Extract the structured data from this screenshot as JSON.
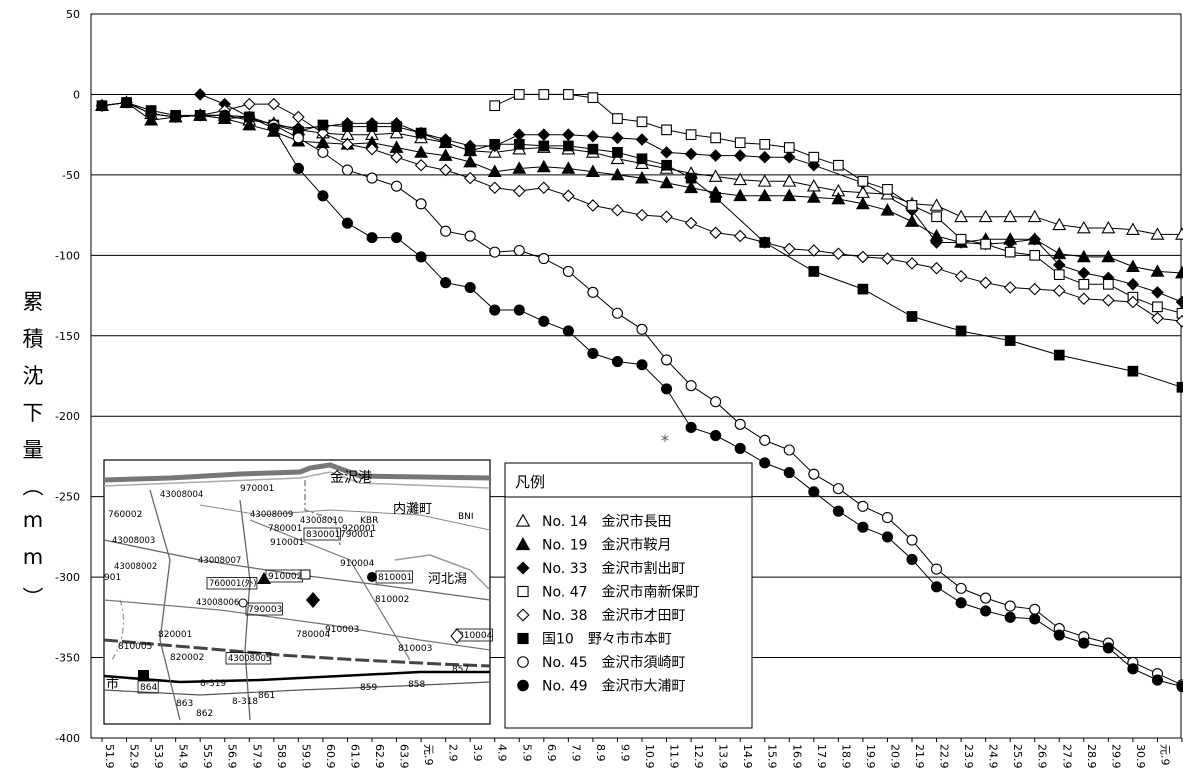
{
  "chart_data": {
    "type": "line",
    "title": "",
    "xlabel": "",
    "ylabel": "累積沈下量（mm）",
    "ylim": [
      -400,
      50
    ],
    "yticks": [
      50,
      0,
      -50,
      -100,
      -150,
      -200,
      -250,
      -300,
      -350,
      -400
    ],
    "grid": "horizontal",
    "x": [
      "51.9",
      "52.9",
      "53.9",
      "54.9",
      "55.9",
      "56.9",
      "57.9",
      "58.9",
      "59.9",
      "60.9",
      "61.9",
      "62.9",
      "63.9",
      "元.9",
      "2.9",
      "3.9",
      "4.9",
      "5.9",
      "6.9",
      "7.9",
      "8.9",
      "9.9",
      "10.9",
      "11.9",
      "12.9",
      "13.9",
      "14.9",
      "15.9",
      "16.9",
      "17.9",
      "18.9",
      "19.9",
      "20.9",
      "21.9",
      "22.9",
      "23.9",
      "24.9",
      "25.9",
      "26.9",
      "27.9",
      "28.9",
      "29.9",
      "30.9",
      "元.9",
      "2.9"
    ],
    "annotation": "*",
    "legend": {
      "title": "凡例",
      "position": "bottom-center"
    },
    "series": [
      {
        "name": "No. 14　金沢市長田",
        "marker": "triangle-open",
        "values": [
          -7,
          -5,
          -12,
          -14,
          -13,
          -13,
          -16,
          -18,
          -22,
          -24,
          -25,
          -25,
          -24,
          -27,
          -30,
          -35,
          -36,
          -34,
          -33,
          -34,
          -36,
          -40,
          -43,
          -46,
          -49,
          -51,
          -53,
          -54,
          -54,
          -57,
          -60,
          -61,
          -62,
          -68,
          -69,
          -76,
          -76,
          -76,
          -76,
          -81,
          -83,
          -83,
          -84,
          -87,
          -87
        ]
      },
      {
        "name": "No. 19　金沢市鞍月",
        "marker": "triangle-filled",
        "values": [
          -7,
          -5,
          -16,
          -14,
          -13,
          -15,
          -19,
          -23,
          -29,
          -30,
          -31,
          -30,
          -33,
          -36,
          -38,
          -42,
          -48,
          -46,
          -45,
          -46,
          -48,
          -50,
          -52,
          -55,
          -58,
          -61,
          -63,
          -63,
          -63,
          -64,
          -65,
          -68,
          -72,
          -79,
          -88,
          -92,
          -90,
          -90,
          -90,
          -99,
          -101,
          -101,
          -107,
          -110,
          -111
        ]
      },
      {
        "name": "No. 33　金沢市割出町",
        "marker": "diamond-filled",
        "values": [
          null,
          null,
          null,
          null,
          0,
          -6,
          -14,
          -19,
          -21,
          -20,
          -18,
          -18,
          -18,
          -24,
          -28,
          -32,
          -32,
          -25,
          -25,
          -25,
          -26,
          -27,
          -28,
          -36,
          -37,
          -38,
          -38,
          -39,
          -39,
          -44,
          null,
          -55,
          null,
          -72,
          -92,
          -92,
          -93,
          -92,
          -90,
          -106,
          -111,
          -114,
          -118,
          -123,
          -129
        ]
      },
      {
        "name": "No. 47　金沢市南新保町",
        "marker": "square-open",
        "values": [
          null,
          null,
          null,
          null,
          null,
          null,
          null,
          null,
          null,
          null,
          null,
          null,
          null,
          null,
          null,
          null,
          -7,
          0,
          0,
          0,
          -2,
          -15,
          -17,
          -22,
          -25,
          -27,
          -30,
          -31,
          -33,
          -39,
          -44,
          -54,
          -59,
          -69,
          -76,
          -90,
          -93,
          -98,
          -100,
          -112,
          -118,
          -118,
          -126,
          -132,
          -136
        ]
      },
      {
        "name": "No. 38　金沢市才田町",
        "marker": "diamond-open",
        "values": [
          -7,
          -5,
          -12,
          -14,
          -13,
          -10,
          -6,
          -6,
          -14,
          -24,
          -31,
          -34,
          -39,
          -44,
          -47,
          -52,
          -58,
          -60,
          -58,
          -63,
          -69,
          -72,
          -75,
          -76,
          -80,
          -86,
          -88,
          -92,
          -96,
          -97,
          -99,
          -101,
          -102,
          -105,
          -108,
          -113,
          -117,
          -120,
          -121,
          -122,
          -127,
          -128,
          -129,
          -139,
          -141
        ]
      },
      {
        "name": "国10　野々市市本町",
        "marker": "square-filled",
        "values": [
          -7,
          -5,
          -10,
          -13,
          -13,
          -15,
          -14,
          -19,
          -23,
          -19,
          -20,
          -20,
          -20,
          -24,
          -30,
          -35,
          -31,
          -31,
          -32,
          -32,
          -34,
          -36,
          -40,
          -44,
          -52,
          -64,
          null,
          -92,
          null,
          -110,
          null,
          -121,
          null,
          -138,
          null,
          -147,
          null,
          -153,
          null,
          -162,
          null,
          null,
          -172,
          null,
          -182
        ]
      },
      {
        "name": "No. 45　金沢市須崎町",
        "marker": "circle-open",
        "values": [
          -7,
          -5,
          -12,
          -14,
          -13,
          -13,
          -14,
          -19,
          -27,
          -36,
          -47,
          -52,
          -57,
          -68,
          -85,
          -88,
          -98,
          -97,
          -102,
          -110,
          -123,
          -136,
          -146,
          -165,
          -181,
          -191,
          -205,
          -215,
          -221,
          -236,
          -245,
          -256,
          -263,
          -277,
          -295,
          -307,
          -313,
          -318,
          -320,
          -332,
          -337,
          -341,
          -353,
          -360,
          -367
        ]
      },
      {
        "name": "No. 49　金沢市大浦町",
        "marker": "circle-filled",
        "values": [
          -7,
          -5,
          -12,
          -14,
          -13,
          -13,
          -14,
          -21,
          -46,
          -63,
          -80,
          -89,
          -89,
          -101,
          -117,
          -120,
          -134,
          -134,
          -141,
          -147,
          -161,
          -166,
          -168,
          -183,
          -207,
          -212,
          -220,
          -229,
          -235,
          -247,
          -259,
          -269,
          -275,
          -289,
          -306,
          -316,
          -321,
          -325,
          -326,
          -336,
          -341,
          -344,
          -357,
          -364,
          -368
        ]
      }
    ]
  },
  "inset_map": {
    "labels": {
      "port": "金沢港",
      "town1": "内灘町",
      "lagoon": "河北潟",
      "city": "市"
    },
    "station_codes": [
      "760002",
      "43008004",
      "43008003",
      "43008002",
      "970001",
      "43008009",
      "920001",
      "43008007",
      "780001",
      "43008010",
      "910001",
      "830001",
      "790001",
      "760001(外)",
      "910002",
      "810001",
      "43008006",
      "790003",
      "910004",
      "810002",
      "780004",
      "910003",
      "820001",
      "810005",
      "820002",
      "43008005",
      "810003",
      "810004",
      "864",
      "8-319",
      "863",
      "8-318",
      "862",
      "861",
      "859",
      "858",
      "857",
      "BNI",
      "KBR",
      "901"
    ],
    "highlighted": [
      "760001(外)",
      "910002",
      "790003",
      "810001",
      "43008005",
      "830001",
      "810004",
      "864"
    ]
  }
}
